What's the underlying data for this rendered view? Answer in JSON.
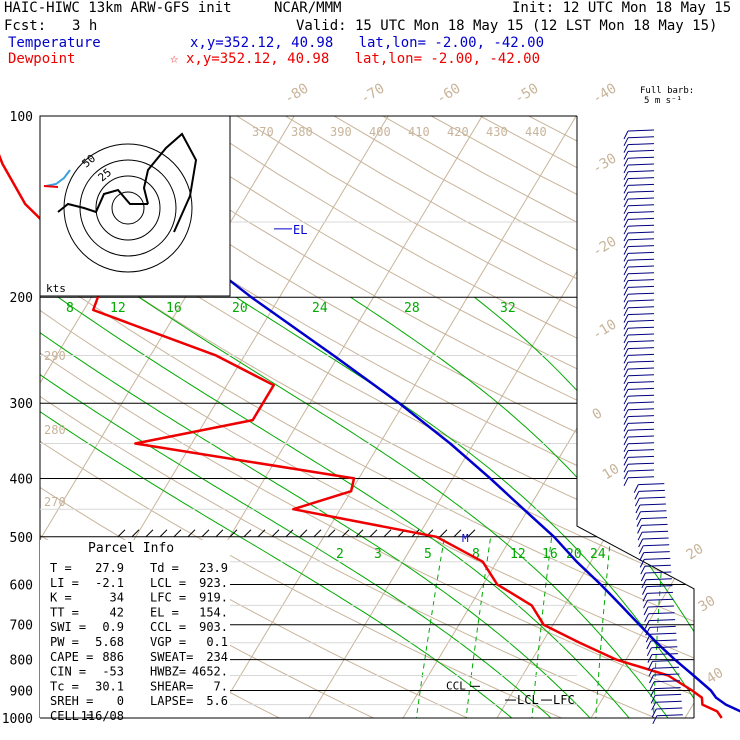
{
  "header": {
    "model": "HAIC-HIWC 13km ARW-GFS init",
    "center": "NCAR/MMM",
    "init": "Init: 12 UTC Mon 18 May 15",
    "fcst_label": "Fcst:",
    "fcst_value": "3 h",
    "valid": "Valid: 15 UTC Mon 18 May 15 (12 LST Mon 18 May 15)",
    "temperature_label": "Temperature",
    "temperature_loc": "x,y=352.12, 40.98   lat,lon= -2.00, -42.00",
    "dewpoint_label": "Dewpoint",
    "dewpoint_marker": "☆",
    "dewpoint_loc": "x,y=352.12, 40.98   lat,lon= -2.00, -42.00",
    "barb_note": "Full barb:",
    "barb_value": "5 m s⁻¹"
  },
  "colors": {
    "temperature": "#0000cc",
    "dewpoint": "#ee0000",
    "moist_adiabat": "#00aa00",
    "mixing_ratio": "#00aa00",
    "dry_adiabat": "#c8b49a",
    "isotherm": "#c8b49a",
    "grid": "#000000",
    "wind_barb": "#000080"
  },
  "chart_data": {
    "type": "line",
    "chart_kind": "skew-T log-p sounding",
    "y_axis": {
      "scale": "log",
      "unit": "hPa",
      "ticks": [
        "100",
        "200",
        "300",
        "400",
        "500",
        "600",
        "700",
        "800",
        "900",
        "1000"
      ]
    },
    "top_isotherm_labels": [
      "-80",
      "-70",
      "-60",
      "-50",
      "-40"
    ],
    "right_isotherm_labels": [
      "-30",
      "-20",
      "-10",
      "0",
      "10",
      "20",
      "30",
      "40"
    ],
    "theta_e_labels": [
      "370",
      "380",
      "390",
      "400",
      "410",
      "420",
      "430",
      "440"
    ],
    "left_theta_labels": [
      "290",
      "280",
      "270"
    ],
    "mixing_ratio_top_labels": [
      "8",
      "12",
      "16",
      "20",
      "24",
      "28",
      "32"
    ],
    "mixing_ratio_mid_labels": [
      "2",
      "3",
      "5",
      "8",
      "12",
      "16",
      "20",
      "24"
    ],
    "series": [
      {
        "name": "Temperature",
        "points": [
          [
            1000,
            27.9
          ],
          [
            975,
            25.5
          ],
          [
            950,
            23.5
          ],
          [
            925,
            22.0
          ],
          [
            900,
            21.0
          ],
          [
            850,
            18.2
          ],
          [
            800,
            15.2
          ],
          [
            750,
            12.2
          ],
          [
            700,
            9.2
          ],
          [
            650,
            6.0
          ],
          [
            600,
            2.5
          ],
          [
            550,
            -1.5
          ],
          [
            500,
            -5.5
          ],
          [
            450,
            -10.5
          ],
          [
            400,
            -16.0
          ],
          [
            350,
            -22.5
          ],
          [
            300,
            -30.5
          ],
          [
            250,
            -40.5
          ],
          [
            200,
            -53.0
          ],
          [
            175,
            -60.0
          ],
          [
            150,
            -67.0
          ],
          [
            125,
            -73.5
          ],
          [
            100,
            -80.0
          ]
        ]
      },
      {
        "name": "Dewpoint",
        "points": [
          [
            1000,
            23.9
          ],
          [
            975,
            23.0
          ],
          [
            950,
            21.0
          ],
          [
            925,
            20.5
          ],
          [
            900,
            19.0
          ],
          [
            850,
            15.5
          ],
          [
            800,
            9.0
          ],
          [
            750,
            4.0
          ],
          [
            700,
            -1.0
          ],
          [
            650,
            -3.5
          ],
          [
            600,
            -8.5
          ],
          [
            550,
            -11.5
          ],
          [
            500,
            -18.0
          ],
          [
            450,
            -35.0
          ],
          [
            420,
            -30.0
          ],
          [
            400,
            -30.5
          ],
          [
            350,
            -56.0
          ],
          [
            320,
            -45.0
          ],
          [
            280,
            -45.0
          ],
          [
            250,
            -53.0
          ],
          [
            210,
            -69.0
          ],
          [
            180,
            -70.0
          ],
          [
            160,
            -77.0
          ],
          [
            140,
            -83.0
          ],
          [
            120,
            -88.0
          ],
          [
            100,
            -93.0
          ]
        ]
      }
    ],
    "levels": [
      {
        "label": "EL",
        "p": 154
      },
      {
        "label": "CCL",
        "p": 903
      },
      {
        "label": "LCL",
        "p": 923
      },
      {
        "label": "LFC",
        "p": 919
      }
    ],
    "hodograph": {
      "unit_label": "kts",
      "ring_labels": [
        "25",
        "50"
      ]
    }
  },
  "parcel": {
    "title": "Parcel Info",
    "rows": [
      [
        "T   =",
        "27.9",
        "Td  =",
        "23.9"
      ],
      [
        "LI  =",
        "-2.1",
        "LCL =",
        "923."
      ],
      [
        "K   =",
        "34",
        "LFC =",
        "919."
      ],
      [
        "TT  =",
        "42",
        "EL  =",
        "154."
      ],
      [
        "SWI =",
        "0.9",
        "CCL =",
        "903."
      ],
      [
        "PW  =",
        "5.68",
        "VGP =",
        "0.1"
      ],
      [
        "CAPE =",
        "886",
        "SWEAT=",
        "234"
      ],
      [
        "CIN  =",
        "-53",
        "HWBZ=",
        "4652."
      ],
      [
        "Tc  =",
        "30.1",
        "SHEAR=",
        "7."
      ],
      [
        "SREH =",
        "0",
        "LAPSE=",
        "5.6"
      ],
      [
        "CELL =",
        "116/08",
        "",
        ""
      ]
    ]
  }
}
